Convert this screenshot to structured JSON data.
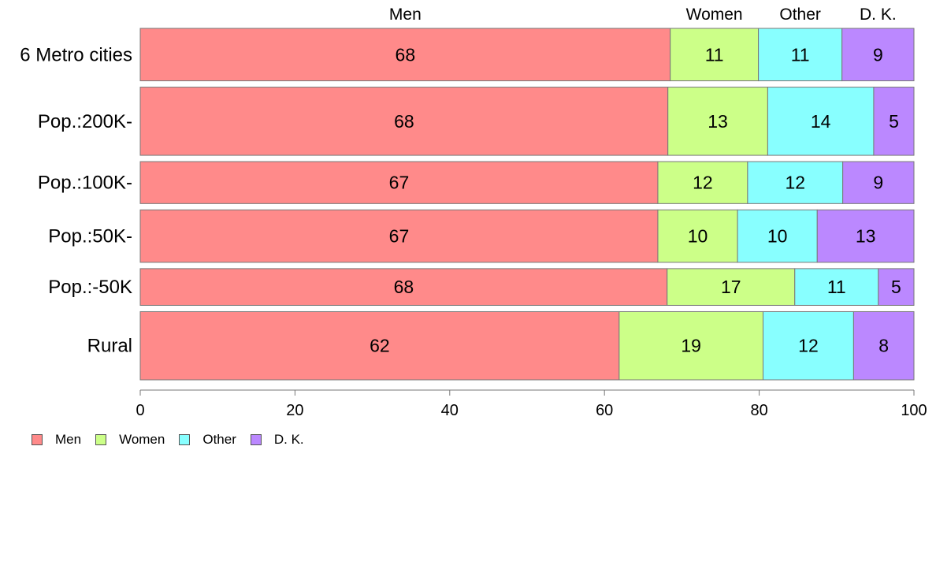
{
  "chart_data": {
    "type": "bar",
    "orientation": "horizontal",
    "stacked": true,
    "categories": [
      "6 Metro cities",
      "Pop.:200K-",
      "Pop.:100K-",
      "Pop.:50K-",
      "Pop.:-50K",
      "Rural"
    ],
    "category_weights": [
      1.0,
      1.3,
      0.8,
      1.0,
      0.7,
      1.3
    ],
    "series": [
      {
        "name": "Men",
        "color": "#ff8a8a",
        "values": [
          68.5,
          68.2,
          66.9,
          66.9,
          68.1,
          61.9
        ],
        "labels": [
          "68",
          "68",
          "67",
          "67",
          "68",
          "62"
        ]
      },
      {
        "name": "Women",
        "color": "#ccff88",
        "values": [
          11.4,
          12.9,
          11.6,
          10.3,
          16.5,
          18.6
        ],
        "labels": [
          "11",
          "13",
          "12",
          "10",
          "17",
          "19"
        ]
      },
      {
        "name": "Other",
        "color": "#88ffff",
        "values": [
          10.8,
          13.7,
          12.3,
          10.3,
          10.8,
          11.7
        ],
        "labels": [
          "11",
          "14",
          "12",
          "10",
          "11",
          "12"
        ]
      },
      {
        "name": "D. K.",
        "color": "#bb88ff",
        "values": [
          9.3,
          5.2,
          9.2,
          12.5,
          4.6,
          7.8
        ],
        "labels": [
          "9",
          "5",
          "9",
          "13",
          "5",
          "8"
        ]
      }
    ],
    "column_headers": [
      "Men",
      "Women",
      "Other",
      "D. K."
    ],
    "xlim": [
      0,
      100
    ],
    "xticks": [
      0,
      20,
      40,
      60,
      80,
      100
    ],
    "grid": false,
    "legend_position": "bottom-left",
    "title": "",
    "xlabel": "",
    "ylabel": ""
  }
}
